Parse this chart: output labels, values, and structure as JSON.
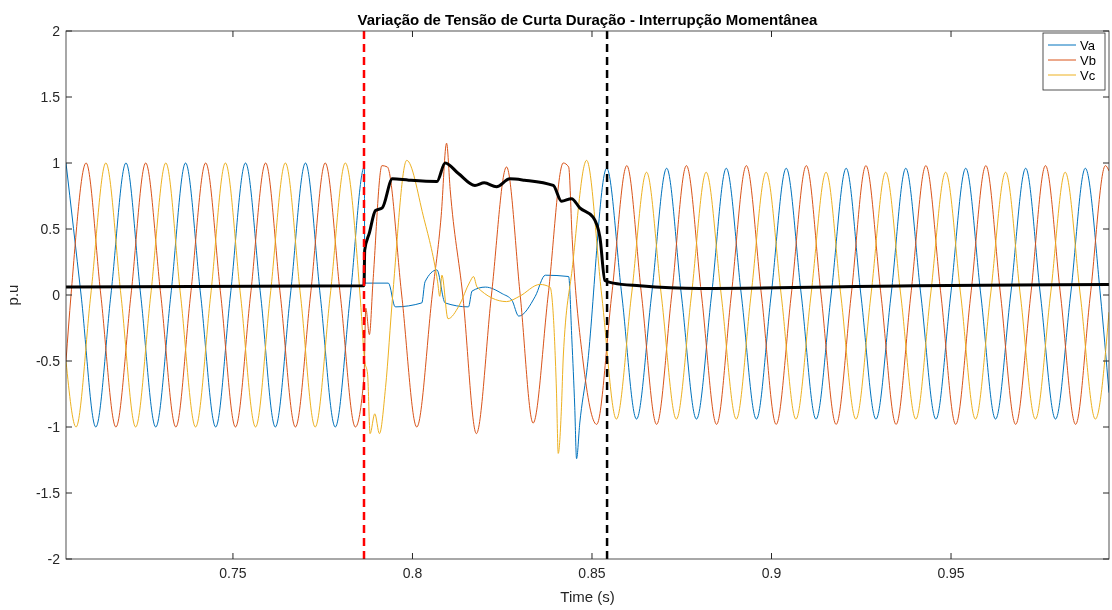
{
  "chart_data": {
    "type": "line",
    "title": "Variação de Tensão de Curta Duração - Interrupção Momentânea",
    "xlabel": "Time (s)",
    "ylabel": "p.u",
    "xlim": [
      0.7035,
      0.994
    ],
    "ylim": [
      -2,
      2
    ],
    "xticks": [
      0.75,
      0.8,
      0.85,
      0.9,
      0.95
    ],
    "yticks": [
      -2,
      -1.5,
      -1,
      -0.5,
      0,
      0.5,
      1,
      1.5,
      2
    ],
    "grid": false,
    "legend": "top right",
    "marker": "none",
    "line_style": "solid",
    "series": [
      {
        "name": "Va",
        "color": "#0072bd",
        "x": [
          0.7035,
          0.7077,
          0.7118,
          0.716,
          0.7202,
          0.7243,
          0.7285,
          0.7327,
          0.7368,
          0.741,
          0.7452,
          0.7493,
          0.7535,
          0.7577,
          0.7618,
          0.766,
          0.7702,
          0.7743,
          0.7785,
          0.7827,
          0.7866,
          0.7867,
          0.7933,
          0.7952,
          0.8026,
          0.8035,
          0.8068,
          0.8091,
          0.8156,
          0.8166,
          0.8203,
          0.825,
          0.8277,
          0.8296,
          0.8342,
          0.837,
          0.8435,
          0.8444,
          0.8452,
          0.8457,
          0.8466,
          0.8485,
          0.8541,
          0.8583,
          0.8624,
          0.8666,
          0.8708,
          0.8749,
          0.8791,
          0.8833,
          0.8874,
          0.8916,
          0.8958,
          0.8999,
          0.9041,
          0.9083,
          0.9124,
          0.9166,
          0.9208,
          0.9249,
          0.9291,
          0.9333,
          0.9374,
          0.9416,
          0.9458,
          0.9499,
          0.9541,
          0.9583,
          0.9624,
          0.9666,
          0.9708,
          0.9749,
          0.9791,
          0.9833,
          0.9874,
          0.9916,
          0.994
        ],
        "values": [
          1,
          0,
          -1,
          0,
          1,
          0,
          -1,
          0,
          1,
          0,
          -1,
          0,
          1,
          0,
          -1,
          0,
          1,
          0,
          -1,
          0,
          0.97,
          0.09,
          0.09,
          -0.09,
          -0.06,
          0.1,
          0.19,
          -0.06,
          -0.09,
          0.03,
          0.06,
          0.01,
          -0.04,
          -0.16,
          -0.01,
          0.15,
          0.14,
          -0.34,
          -0.85,
          -1.24,
          -0.97,
          -0.59,
          0.96,
          0,
          -0.94,
          0,
          0.96,
          0,
          -0.94,
          0,
          0.96,
          0,
          -0.94,
          0,
          0.96,
          0,
          -0.94,
          0,
          0.96,
          0,
          -0.94,
          0,
          0.96,
          0,
          -0.94,
          0,
          0.96,
          0,
          -0.94,
          0,
          0.96,
          0,
          -0.94,
          0,
          0.96,
          0,
          -0.74
        ]
      },
      {
        "name": "Vb",
        "color": "#d95319",
        "x": [
          0.7035,
          0.7049,
          0.7091,
          0.7132,
          0.7174,
          0.7216,
          0.7257,
          0.7299,
          0.7341,
          0.7382,
          0.7424,
          0.7466,
          0.7507,
          0.7549,
          0.7591,
          0.7632,
          0.7674,
          0.7716,
          0.7757,
          0.7799,
          0.7841,
          0.7865,
          0.787,
          0.788,
          0.789,
          0.7915,
          0.793,
          0.797,
          0.8012,
          0.8055,
          0.808,
          0.8095,
          0.8105,
          0.814,
          0.8178,
          0.822,
          0.8262,
          0.83,
          0.8336,
          0.8378,
          0.842,
          0.8435,
          0.8445,
          0.8475,
          0.8513,
          0.8555,
          0.8597,
          0.8638,
          0.868,
          0.8722,
          0.8763,
          0.8805,
          0.8847,
          0.8888,
          0.893,
          0.8972,
          0.9013,
          0.9055,
          0.9097,
          0.9138,
          0.918,
          0.9222,
          0.9263,
          0.9305,
          0.9347,
          0.9388,
          0.943,
          0.9472,
          0.9513,
          0.9555,
          0.9597,
          0.9638,
          0.968,
          0.9722,
          0.9763,
          0.9805,
          0.9847,
          0.9888,
          0.993,
          0.994
        ],
        "values": [
          -0.5,
          0,
          1,
          0,
          -1,
          0,
          1,
          0,
          -1,
          0,
          1,
          0,
          -1,
          0,
          1,
          0,
          -1,
          0,
          1,
          0,
          -1,
          -0.62,
          -0.1,
          -0.3,
          0.1,
          0.98,
          0.97,
          0,
          -1,
          0,
          0.6,
          1.15,
          0.8,
          0,
          -1.05,
          0,
          0.97,
          0,
          -0.97,
          0,
          1,
          0.97,
          0.42,
          -0.5,
          -0.98,
          0,
          0.98,
          0,
          -0.98,
          0,
          0.98,
          0,
          -0.98,
          0,
          0.98,
          0,
          -0.98,
          0,
          0.98,
          0,
          -0.98,
          0,
          0.98,
          0,
          -0.98,
          0,
          0.98,
          0,
          -0.98,
          0,
          0.98,
          0,
          -0.98,
          0,
          0.98,
          0,
          -0.98,
          0,
          0.98,
          0.94
        ]
      },
      {
        "name": "Vc",
        "color": "#edb120",
        "x": [
          0.7035,
          0.7063,
          0.7104,
          0.7146,
          0.7188,
          0.7229,
          0.7271,
          0.7313,
          0.7354,
          0.7396,
          0.7438,
          0.7479,
          0.7521,
          0.7563,
          0.7604,
          0.7646,
          0.7688,
          0.7729,
          0.7771,
          0.7813,
          0.7854,
          0.7867,
          0.7875,
          0.7882,
          0.7895,
          0.7908,
          0.7925,
          0.7945,
          0.7984,
          0.803,
          0.807,
          0.8076,
          0.8082,
          0.8099,
          0.813,
          0.816,
          0.817,
          0.818,
          0.8262,
          0.8298,
          0.8355,
          0.8383,
          0.8401,
          0.8406,
          0.8415,
          0.842,
          0.8445,
          0.8485,
          0.8527,
          0.8568,
          0.861,
          0.8652,
          0.8693,
          0.8735,
          0.8777,
          0.8818,
          0.886,
          0.8902,
          0.8943,
          0.8985,
          0.9027,
          0.9068,
          0.911,
          0.9152,
          0.9193,
          0.9235,
          0.9277,
          0.9318,
          0.936,
          0.9402,
          0.9443,
          0.9485,
          0.9527,
          0.9568,
          0.961,
          0.9652,
          0.9693,
          0.9735,
          0.9777,
          0.9818,
          0.986,
          0.9902,
          0.994
        ],
        "values": [
          -0.5,
          -1,
          0,
          1,
          0,
          -1,
          0,
          1,
          0,
          -1,
          0,
          1,
          0,
          -1,
          0,
          1,
          0,
          -1,
          0,
          1,
          0,
          -0.5,
          -0.6,
          -1.05,
          -0.9,
          -1.05,
          -0.7,
          0,
          1.02,
          0.6,
          0.1,
          -0.01,
          0.15,
          -0.18,
          -0.08,
          0.1,
          0.14,
          0.06,
          -0.05,
          -0.01,
          0.08,
          0.06,
          -0.72,
          -1.2,
          -0.85,
          -0.47,
          0.2,
          1.02,
          0,
          -0.94,
          0,
          0.93,
          0,
          -0.94,
          0,
          0.93,
          0,
          -0.94,
          0,
          0.93,
          0,
          -0.94,
          0,
          0.93,
          0,
          -0.94,
          0,
          0.93,
          0,
          -0.94,
          0,
          0.93,
          0,
          -0.94,
          0,
          0.93,
          0,
          -0.94,
          0,
          0.93,
          0,
          -0.94,
          -0.13
        ]
      },
      {
        "color": "#000000",
        "x": [
          0.7035,
          0.7865,
          0.7867,
          0.788,
          0.7897,
          0.7916,
          0.7944,
          0.799,
          0.8068,
          0.8091,
          0.8128,
          0.8174,
          0.82,
          0.8234,
          0.8271,
          0.8312,
          0.8392,
          0.8415,
          0.8443,
          0.8466,
          0.8503,
          0.8522,
          0.8536,
          0.856,
          0.8633,
          0.88,
          0.94,
          0.994
        ],
        "values": [
          0.06,
          0.07,
          0.34,
          0.47,
          0.64,
          0.66,
          0.88,
          0.87,
          0.86,
          1.0,
          0.92,
          0.83,
          0.85,
          0.82,
          0.88,
          0.87,
          0.83,
          0.71,
          0.73,
          0.66,
          0.59,
          0.44,
          0.11,
          0.09,
          0.07,
          0.05,
          0.07,
          0.08
        ]
      }
    ],
    "ref_lines": [
      {
        "axis": "x",
        "value": 0.7865,
        "color": "#ff0000",
        "line_style": "dashed"
      },
      {
        "axis": "x",
        "value": 0.8542,
        "color": "#000000",
        "line_style": "dashed"
      }
    ]
  }
}
